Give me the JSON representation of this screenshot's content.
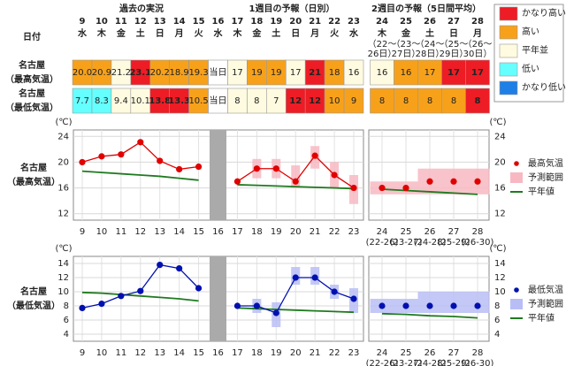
{
  "table": {
    "section_headers": [
      "過去の実況",
      "1週目の予報（日別）",
      "2週目の予報（5日間平均）"
    ],
    "date_label": "日付",
    "days": [
      {
        "day": "9",
        "weekday": "水"
      },
      {
        "day": "10",
        "weekday": "木"
      },
      {
        "day": "11",
        "weekday": "金"
      },
      {
        "day": "12",
        "weekday": "土"
      },
      {
        "day": "13",
        "weekday": "日"
      },
      {
        "day": "14",
        "weekday": "月"
      },
      {
        "day": "15",
        "weekday": "火"
      },
      {
        "day": "16",
        "weekday": "水"
      },
      {
        "day": "17",
        "weekday": "木"
      },
      {
        "day": "18",
        "weekday": "金"
      },
      {
        "day": "19",
        "weekday": "土"
      },
      {
        "day": "20",
        "weekday": "日"
      },
      {
        "day": "21",
        "weekday": "月"
      },
      {
        "day": "22",
        "weekday": "火"
      },
      {
        "day": "23",
        "weekday": "水"
      },
      {
        "day": "24",
        "weekday": "木",
        "period": [
          "（22～",
          "26日）"
        ]
      },
      {
        "day": "25",
        "weekday": "金",
        "period": [
          "（23～",
          "27日）"
        ]
      },
      {
        "day": "26",
        "weekday": "土",
        "period": [
          "（24～",
          "28日）"
        ]
      },
      {
        "day": "27",
        "weekday": "日",
        "period": [
          "（25～",
          "29日）"
        ]
      },
      {
        "day": "28",
        "weekday": "月",
        "period": [
          "（26～",
          "30日）"
        ]
      }
    ],
    "rows": [
      {
        "label": [
          "名古屋",
          "（最高気温）"
        ],
        "cells": [
          {
            "text": "20.0",
            "color": "#f7a11a"
          },
          {
            "text": "20.9",
            "color": "#f7a11a"
          },
          {
            "text": "21.2",
            "color": "#fffbe0"
          },
          {
            "text": "23.1",
            "color": "#ee1c25"
          },
          {
            "text": "20.2",
            "color": "#f7a11a"
          },
          {
            "text": "18.9",
            "color": "#f7a11a"
          },
          {
            "text": "19.3",
            "color": "#f7a11a"
          },
          {
            "text": "当日",
            "color": "#ffffff"
          },
          {
            "text": "17",
            "color": "#fffbe0"
          },
          {
            "text": "19",
            "color": "#f7a11a"
          },
          {
            "text": "19",
            "color": "#f7a11a"
          },
          {
            "text": "17",
            "color": "#fffbe0"
          },
          {
            "text": "21",
            "color": "#ee1c25"
          },
          {
            "text": "18",
            "color": "#f7a11a"
          },
          {
            "text": "16",
            "color": "#fffbe0"
          },
          {
            "text": "16",
            "color": "#fffbe0"
          },
          {
            "text": "16",
            "color": "#f7a11a"
          },
          {
            "text": "17",
            "color": "#f7a11a"
          },
          {
            "text": "17",
            "color": "#ee1c25"
          },
          {
            "text": "17",
            "color": "#ee1c25"
          }
        ]
      },
      {
        "label": [
          "名古屋",
          "（最低気温）"
        ],
        "cells": [
          {
            "text": "7.7",
            "color": "#66ffff"
          },
          {
            "text": "8.3",
            "color": "#66ffff"
          },
          {
            "text": "9.4",
            "color": "#fffbe0"
          },
          {
            "text": "10.1",
            "color": "#fffbe0"
          },
          {
            "text": "13.8",
            "color": "#ee1c25"
          },
          {
            "text": "13.3",
            "color": "#ee1c25"
          },
          {
            "text": "10.5",
            "color": "#f7a11a"
          },
          {
            "text": "当日",
            "color": "#ffffff"
          },
          {
            "text": "8",
            "color": "#fffbe0"
          },
          {
            "text": "8",
            "color": "#fffbe0"
          },
          {
            "text": "7",
            "color": "#fffbe0"
          },
          {
            "text": "12",
            "color": "#ee1c25"
          },
          {
            "text": "12",
            "color": "#ee1c25"
          },
          {
            "text": "10",
            "color": "#f7a11a"
          },
          {
            "text": "9",
            "color": "#f7a11a"
          },
          {
            "text": "8",
            "color": "#f7a11a"
          },
          {
            "text": "8",
            "color": "#f7a11a"
          },
          {
            "text": "8",
            "color": "#f7a11a"
          },
          {
            "text": "8",
            "color": "#f7a11a"
          },
          {
            "text": "8",
            "color": "#ee1c25"
          }
        ]
      }
    ]
  },
  "legend": [
    {
      "name": "かなり高い",
      "color": "#ee1c25"
    },
    {
      "name": "高い",
      "color": "#f7a11a"
    },
    {
      "name": "平年並",
      "color": "#fffbe0"
    },
    {
      "name": "低い",
      "color": "#66ffff"
    },
    {
      "name": "かなり低い",
      "color": "#1e7fe6"
    }
  ],
  "chart_data": [
    {
      "type": "line",
      "label": [
        "名古屋",
        "（最高気温）"
      ],
      "unit": "(℃)",
      "categories": [
        "9",
        "10",
        "11",
        "12",
        "13",
        "14",
        "15",
        "16",
        "17",
        "18",
        "19",
        "20",
        "21",
        "22",
        "23",
        "24",
        "25",
        "26",
        "27",
        "28"
      ],
      "x_sublabels": [
        "(22-26)",
        "(23-27)",
        "(24-28)",
        "(25-29)",
        "(26-30)"
      ],
      "ylim": [
        11,
        25
      ],
      "yticks": [
        12,
        16,
        20,
        24
      ],
      "grid": true,
      "series": [
        {
          "name": "最高気温",
          "color": "#e00000",
          "values": [
            20.0,
            20.9,
            21.2,
            23.1,
            20.2,
            18.9,
            19.3,
            null,
            17,
            19,
            19,
            17,
            21,
            18,
            16,
            16,
            16,
            17,
            17,
            17
          ]
        },
        {
          "name": "予測範囲",
          "color": "#f7b8c2",
          "type": "range",
          "low": [
            null,
            null,
            null,
            null,
            null,
            null,
            null,
            null,
            null,
            17.5,
            17.5,
            16,
            19,
            16,
            13.5,
            15,
            15,
            15,
            15,
            15
          ],
          "high": [
            null,
            null,
            null,
            null,
            null,
            null,
            null,
            null,
            null,
            20.5,
            20.5,
            19.5,
            22.5,
            20,
            18,
            17,
            17,
            19,
            19,
            19
          ]
        },
        {
          "name": "平年値",
          "color": "#1f7a1f",
          "values": [
            18.6,
            18.4,
            18.2,
            18.0,
            17.8,
            17.5,
            17.2,
            null,
            16.5,
            16.4,
            16.3,
            16.2,
            16.1,
            16.0,
            15.9,
            15.8,
            15.6,
            15.4,
            15.2,
            15.0
          ]
        }
      ]
    },
    {
      "type": "line",
      "label": [
        "名古屋",
        "（最低気温）"
      ],
      "unit": "(℃)",
      "categories": [
        "9",
        "10",
        "11",
        "12",
        "13",
        "14",
        "15",
        "16",
        "17",
        "18",
        "19",
        "20",
        "21",
        "22",
        "23",
        "24",
        "25",
        "26",
        "27",
        "28"
      ],
      "x_sublabels": [
        "(22-26)",
        "(23-27)",
        "(24-28)",
        "(25-29)",
        "(26-30)"
      ],
      "ylim": [
        3,
        15
      ],
      "yticks": [
        4,
        6,
        8,
        10,
        12,
        14
      ],
      "grid": true,
      "series": [
        {
          "name": "最低気温",
          "color": "#0010b0",
          "values": [
            7.7,
            8.3,
            9.4,
            10.1,
            13.8,
            13.3,
            10.5,
            null,
            8,
            8,
            7,
            12,
            12,
            10,
            9,
            8,
            8,
            8,
            8,
            8
          ]
        },
        {
          "name": "予測範囲",
          "color": "#b8bef5",
          "type": "range",
          "low": [
            null,
            null,
            null,
            null,
            null,
            null,
            null,
            null,
            null,
            7,
            5,
            11,
            11,
            9,
            7,
            7,
            7,
            7,
            7,
            7
          ],
          "high": [
            null,
            null,
            null,
            null,
            null,
            null,
            null,
            null,
            null,
            9,
            8.5,
            13.5,
            13.5,
            11,
            10.5,
            9,
            9,
            10,
            10,
            10
          ]
        },
        {
          "name": "平年値",
          "color": "#1f7a1f",
          "values": [
            9.9,
            9.8,
            9.6,
            9.4,
            9.2,
            9.0,
            8.7,
            null,
            7.7,
            7.6,
            7.5,
            7.4,
            7.3,
            7.2,
            7.1,
            6.9,
            6.8,
            6.6,
            6.5,
            6.3
          ]
        }
      ]
    }
  ]
}
